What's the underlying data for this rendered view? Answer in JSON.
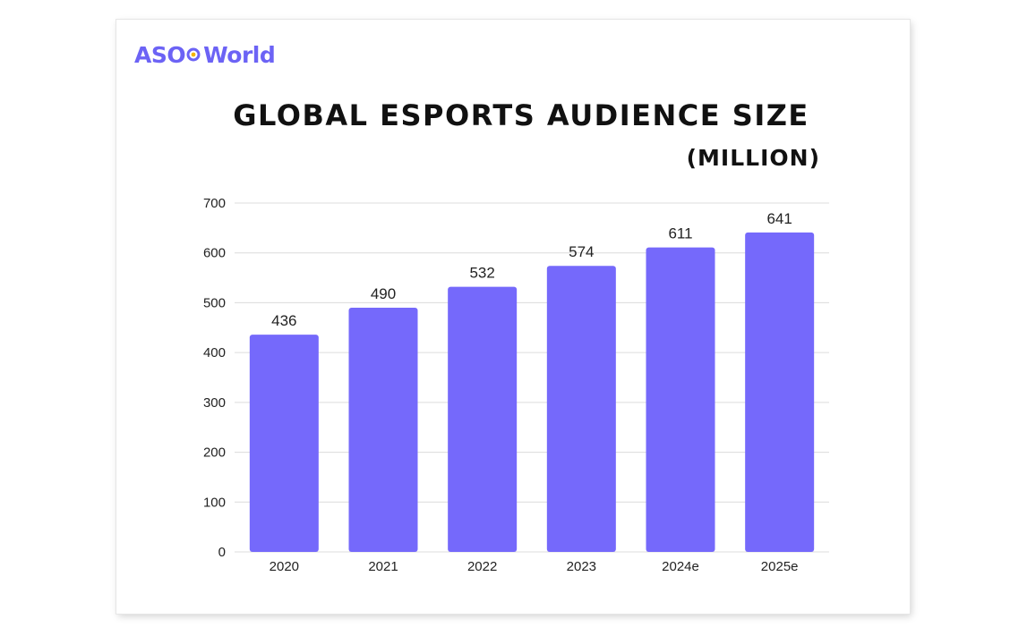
{
  "logo": {
    "left": "ASO",
    "right": "World",
    "icon": "aso-world-o-icon",
    "color": "#6c63f5",
    "dot_color": "#f5b400"
  },
  "chart_data": {
    "type": "bar",
    "title": "GLOBAL ESPORTS AUDIENCE SIZE",
    "subtitle": "(MILLION)",
    "categories": [
      "2020",
      "2021",
      "2022",
      "2023",
      "2024e",
      "2025e"
    ],
    "values": [
      436,
      490,
      532,
      574,
      611,
      641
    ],
    "data_labels": [
      "436",
      "490",
      "532",
      "574",
      "611",
      "641"
    ],
    "xlabel": "",
    "ylabel": "",
    "ylim": [
      0,
      700
    ],
    "yticks": [
      "0",
      "100",
      "200",
      "300",
      "400",
      "500",
      "600",
      "700"
    ],
    "grid": true,
    "legend": "none",
    "bar_color": "#7569fb",
    "grid_color": "#dcdcdc"
  }
}
